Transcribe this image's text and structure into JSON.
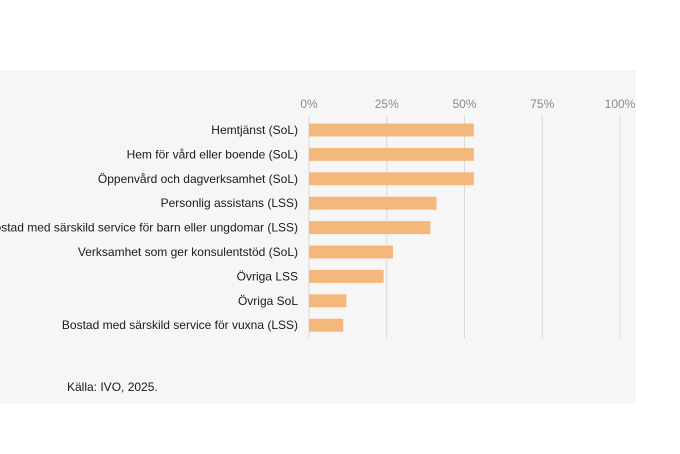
{
  "chart_data": {
    "type": "bar",
    "orientation": "horizontal",
    "categories": [
      "Hemtjänst (SoL)",
      "Hem för vård eller boende (SoL)",
      "Öppenvård och dagverksamhet (SoL)",
      "Personlig assistans (LSS)",
      "Bostad med särskild service för barn eller ungdomar (LSS)",
      "Verksamhet som ger konsulentstöd (SoL)",
      "Övriga LSS",
      "Övriga SoL",
      "Bostad med särskild service för vuxna (LSS)"
    ],
    "values": [
      53,
      53,
      53,
      41,
      39,
      27,
      24,
      12,
      11
    ],
    "xlim": [
      0,
      100
    ],
    "xticks": [
      "0%",
      "25%",
      "50%",
      "75%",
      "100%"
    ],
    "xtick_values": [
      0,
      25,
      50,
      75,
      100
    ],
    "grid": true,
    "bar_color": "#f5b87c",
    "axis_position": "top"
  },
  "source": "Källa: IVO, 2025."
}
